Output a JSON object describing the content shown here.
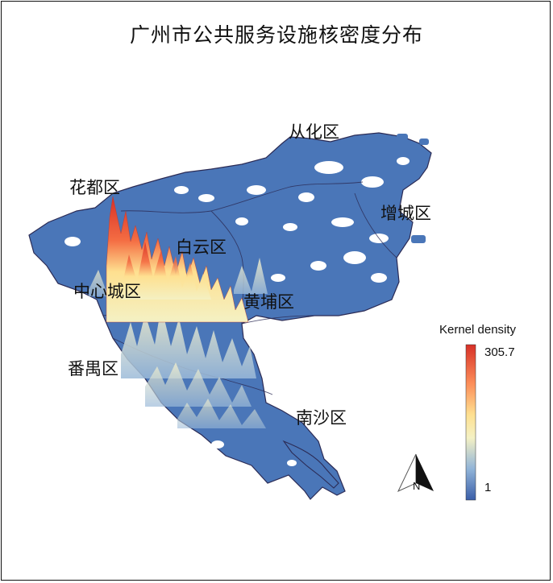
{
  "map": {
    "title": "广州市公共服务设施核密度分布",
    "districts": {
      "conghua": "从化区",
      "huadu": "花都区",
      "zengcheng": "增城区",
      "baiyun": "白云区",
      "center": "中心城区",
      "huangpu": "黄埔区",
      "panyu": "番禺区",
      "nansha": "南沙区"
    },
    "legend": {
      "title": "Kernel density",
      "max_label": "305.7",
      "min_label": "1",
      "color_low": "#3a5ea8",
      "color_mid": "#f4f1c4",
      "color_high": "#d73027"
    },
    "north_arrow": {
      "label": "N"
    }
  }
}
